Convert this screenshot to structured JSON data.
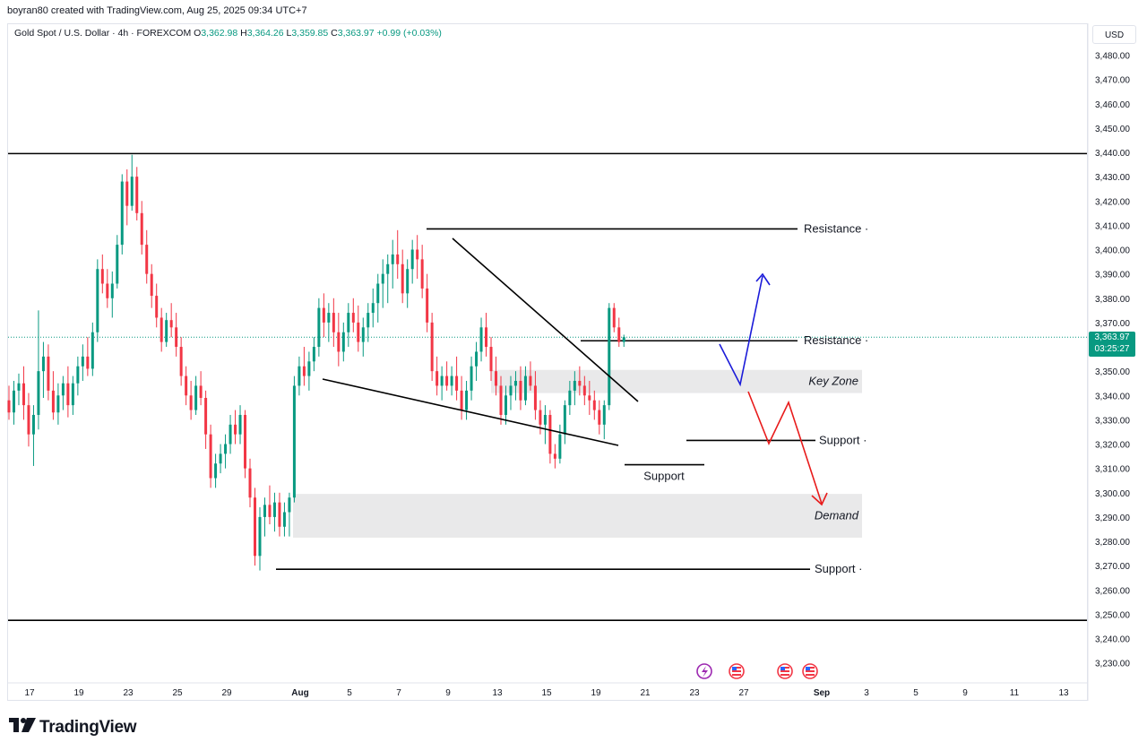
{
  "header": {
    "attribution": "boyran80 created with TradingView.com, Aug 25, 2025 09:34 UTC+7"
  },
  "legend": {
    "symbol": "Gold Spot / U.S. Dollar · 4h · FOREXCOM",
    "o_label": "O",
    "o_value": "3,362.98",
    "h_label": "H",
    "h_value": "3,364.26",
    "l_label": "L",
    "l_value": "3,359.85",
    "c_label": "C",
    "c_value": "3,363.97",
    "change": "+0.99 (+0.03%)"
  },
  "currency_button": "USD",
  "last_price": {
    "price": "3,363.97",
    "countdown": "03:25:27"
  },
  "brand": "TradingView",
  "colors": {
    "up": "#089981",
    "down": "#f23645",
    "blue_path": "#1b1bd9",
    "red_path": "#e81b1b",
    "zone": "#e9e9ea"
  },
  "chart_data": {
    "type": "candlestick",
    "symbol": "Gold Spot / U.S. Dollar",
    "timeframe": "4h",
    "ylim": [
      3220,
      3490
    ],
    "yticks": [
      3480,
      3470,
      3460,
      3450,
      3440,
      3430,
      3420,
      3410,
      3400,
      3390,
      3380,
      3370,
      3360,
      3350,
      3340,
      3330,
      3320,
      3310,
      3300,
      3290,
      3280,
      3270,
      3260,
      3250,
      3240,
      3230
    ],
    "ytick_labels": [
      "3,480.00",
      "3,470.00",
      "3,460.00",
      "3,450.00",
      "3,440.00",
      "3,430.00",
      "3,420.00",
      "3,410.00",
      "3,400.00",
      "3,390.00",
      "3,380.00",
      "3,370.00",
      "3,360.00",
      "3,350.00",
      "3,340.00",
      "3,330.00",
      "3,320.00",
      "3,310.00",
      "3,300.00",
      "3,290.00",
      "3,280.00",
      "3,270.00",
      "3,260.00",
      "3,250.00",
      "3,240.00",
      "3,230.00"
    ],
    "xticks": [
      "17",
      "19",
      "23",
      "25",
      "29",
      "Aug",
      "5",
      "7",
      "9",
      "13",
      "15",
      "19",
      "21",
      "23",
      "27",
      "Sep",
      "3",
      "5",
      "9",
      "11",
      "13"
    ],
    "current_price": 3363.97,
    "horizontal_lines": [
      {
        "price": 3439.5,
        "label": ""
      },
      {
        "price": 3247.5,
        "label": ""
      }
    ],
    "levels": [
      {
        "label": "Resistance",
        "price": 3408.5
      },
      {
        "label": "Resistance",
        "price": 3362.5
      },
      {
        "label": "Support",
        "price": 3321.5
      },
      {
        "label": "Support",
        "price": 3311.5
      },
      {
        "label": "Support",
        "price": 3268.5
      }
    ],
    "zones": [
      {
        "label": "Key Zone",
        "from": 3341,
        "to": 3350.5
      },
      {
        "label": "Demand",
        "from": 3281.5,
        "to": 3299.5
      }
    ],
    "candles": [
      [
        3338,
        3344,
        3330,
        3333
      ],
      [
        3333,
        3346,
        3328,
        3342
      ],
      [
        3342,
        3349,
        3336,
        3345
      ],
      [
        3345,
        3352,
        3330,
        3336
      ],
      [
        3336,
        3341,
        3319,
        3324
      ],
      [
        3324,
        3336,
        3311,
        3332
      ],
      [
        3332,
        3375,
        3326,
        3350
      ],
      [
        3350,
        3362,
        3339,
        3356
      ],
      [
        3356,
        3361,
        3338,
        3342
      ],
      [
        3342,
        3350,
        3330,
        3333
      ],
      [
        3333,
        3345,
        3328,
        3340
      ],
      [
        3340,
        3348,
        3334,
        3345
      ],
      [
        3345,
        3352,
        3331,
        3336
      ],
      [
        3336,
        3348,
        3332,
        3345
      ],
      [
        3345,
        3356,
        3340,
        3352
      ],
      [
        3352,
        3361,
        3346,
        3356
      ],
      [
        3356,
        3364,
        3348,
        3351
      ],
      [
        3351,
        3370,
        3348,
        3366
      ],
      [
        3366,
        3396,
        3362,
        3392
      ],
      [
        3392,
        3398,
        3382,
        3386
      ],
      [
        3386,
        3392,
        3376,
        3380
      ],
      [
        3380,
        3391,
        3372,
        3386
      ],
      [
        3386,
        3406,
        3384,
        3402
      ],
      [
        3402,
        3431,
        3398,
        3428
      ],
      [
        3428,
        3433,
        3410,
        3418
      ],
      [
        3418,
        3439,
        3416,
        3430
      ],
      [
        3430,
        3434,
        3412,
        3415
      ],
      [
        3415,
        3420,
        3398,
        3402
      ],
      [
        3402,
        3408,
        3386,
        3390
      ],
      [
        3390,
        3394,
        3376,
        3381
      ],
      [
        3381,
        3386,
        3368,
        3372
      ],
      [
        3372,
        3376,
        3358,
        3362
      ],
      [
        3362,
        3374,
        3360,
        3371
      ],
      [
        3371,
        3378,
        3364,
        3368
      ],
      [
        3368,
        3374,
        3356,
        3360
      ],
      [
        3360,
        3364,
        3344,
        3348
      ],
      [
        3348,
        3352,
        3336,
        3340
      ],
      [
        3340,
        3346,
        3330,
        3334
      ],
      [
        3334,
        3348,
        3332,
        3344
      ],
      [
        3344,
        3350,
        3336,
        3339
      ],
      [
        3339,
        3342,
        3318,
        3324
      ],
      [
        3324,
        3328,
        3302,
        3306
      ],
      [
        3306,
        3316,
        3302,
        3312
      ],
      [
        3312,
        3320,
        3308,
        3316
      ],
      [
        3316,
        3324,
        3310,
        3320
      ],
      [
        3320,
        3332,
        3316,
        3328
      ],
      [
        3328,
        3334,
        3320,
        3324
      ],
      [
        3324,
        3336,
        3320,
        3332
      ],
      [
        3332,
        3334,
        3306,
        3310
      ],
      [
        3310,
        3314,
        3294,
        3298
      ],
      [
        3298,
        3302,
        3270,
        3274
      ],
      [
        3274,
        3294,
        3268,
        3290
      ],
      [
        3290,
        3298,
        3282,
        3295
      ],
      [
        3295,
        3303,
        3287,
        3290
      ],
      [
        3290,
        3300,
        3284,
        3296
      ],
      [
        3296,
        3300,
        3282,
        3286
      ],
      [
        3286,
        3296,
        3282,
        3292
      ],
      [
        3292,
        3300,
        3282,
        3298
      ],
      [
        3298,
        3348,
        3296,
        3344
      ],
      [
        3344,
        3356,
        3340,
        3352
      ],
      [
        3352,
        3360,
        3344,
        3348
      ],
      [
        3348,
        3358,
        3342,
        3354
      ],
      [
        3354,
        3364,
        3350,
        3360
      ],
      [
        3360,
        3380,
        3356,
        3376
      ],
      [
        3376,
        3382,
        3364,
        3370
      ],
      [
        3370,
        3378,
        3362,
        3374
      ],
      [
        3374,
        3380,
        3360,
        3366
      ],
      [
        3366,
        3374,
        3352,
        3358
      ],
      [
        3358,
        3370,
        3354,
        3366
      ],
      [
        3366,
        3378,
        3360,
        3374
      ],
      [
        3374,
        3380,
        3366,
        3370
      ],
      [
        3370,
        3377,
        3358,
        3362
      ],
      [
        3362,
        3372,
        3356,
        3368
      ],
      [
        3368,
        3378,
        3362,
        3374
      ],
      [
        3374,
        3384,
        3368,
        3378
      ],
      [
        3378,
        3390,
        3370,
        3386
      ],
      [
        3386,
        3396,
        3376,
        3390
      ],
      [
        3390,
        3398,
        3378,
        3394
      ],
      [
        3394,
        3404,
        3384,
        3398
      ],
      [
        3398,
        3408,
        3388,
        3394
      ],
      [
        3394,
        3400,
        3378,
        3382
      ],
      [
        3382,
        3396,
        3376,
        3392
      ],
      [
        3392,
        3404,
        3386,
        3400
      ],
      [
        3400,
        3406,
        3388,
        3396
      ],
      [
        3396,
        3402,
        3380,
        3384
      ],
      [
        3384,
        3390,
        3366,
        3370
      ],
      [
        3370,
        3374,
        3346,
        3350
      ],
      [
        3350,
        3356,
        3340,
        3344
      ],
      [
        3344,
        3352,
        3338,
        3348
      ],
      [
        3348,
        3354,
        3342,
        3344
      ],
      [
        3344,
        3352,
        3340,
        3348
      ],
      [
        3348,
        3356,
        3338,
        3342
      ],
      [
        3342,
        3348,
        3330,
        3334
      ],
      [
        3334,
        3346,
        3330,
        3342
      ],
      [
        3342,
        3356,
        3338,
        3352
      ],
      [
        3352,
        3362,
        3346,
        3358
      ],
      [
        3358,
        3372,
        3354,
        3368
      ],
      [
        3368,
        3374,
        3356,
        3360
      ],
      [
        3360,
        3364,
        3346,
        3350
      ],
      [
        3350,
        3356,
        3340,
        3344
      ],
      [
        3344,
        3348,
        3328,
        3332
      ],
      [
        3332,
        3344,
        3328,
        3340
      ],
      [
        3340,
        3348,
        3334,
        3344
      ],
      [
        3344,
        3350,
        3338,
        3346
      ],
      [
        3346,
        3352,
        3334,
        3338
      ],
      [
        3338,
        3352,
        3336,
        3348
      ],
      [
        3348,
        3354,
        3342,
        3344
      ],
      [
        3344,
        3350,
        3330,
        3334
      ],
      [
        3334,
        3338,
        3324,
        3328
      ],
      [
        3328,
        3336,
        3320,
        3332
      ],
      [
        3332,
        3334,
        3312,
        3316
      ],
      [
        3316,
        3320,
        3310,
        3314
      ],
      [
        3314,
        3328,
        3312,
        3324
      ],
      [
        3324,
        3338,
        3320,
        3336
      ],
      [
        3336,
        3346,
        3332,
        3342
      ],
      [
        3342,
        3350,
        3336,
        3346
      ],
      [
        3346,
        3352,
        3340,
        3344
      ],
      [
        3344,
        3348,
        3336,
        3340
      ],
      [
        3340,
        3346,
        3332,
        3338
      ],
      [
        3338,
        3342,
        3330,
        3334
      ],
      [
        3334,
        3338,
        3324,
        3328
      ],
      [
        3328,
        3338,
        3322,
        3336
      ],
      [
        3336,
        3378,
        3334,
        3376
      ],
      [
        3376,
        3378,
        3366,
        3368
      ],
      [
        3368,
        3372,
        3360,
        3362
      ],
      [
        3362,
        3365,
        3360,
        3364
      ]
    ]
  },
  "events": {
    "icons": [
      "lightning-event-icon",
      "us-flag-event-icon",
      "us-flag-event-icon",
      "us-flag-event-icon"
    ]
  }
}
